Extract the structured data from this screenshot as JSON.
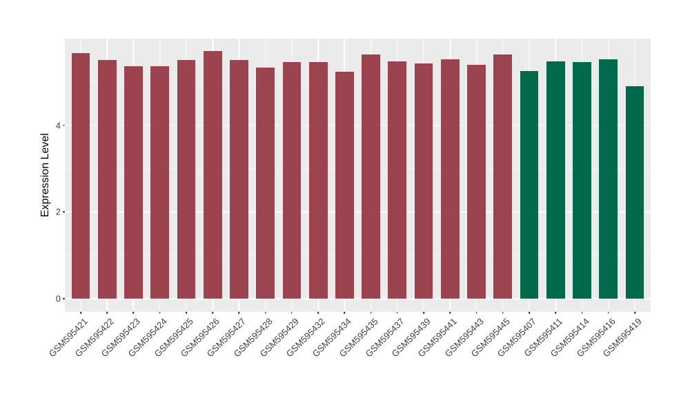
{
  "chart_data": {
    "type": "bar",
    "title": "",
    "xlabel": "",
    "ylabel": "Expression Level",
    "ylim": [
      -0.3,
      6.0
    ],
    "yticks": [
      0,
      2,
      4
    ],
    "y_minor_ticks": [
      1,
      3,
      5
    ],
    "grid": "white major and minor horizontal lines plus white vertical lines at category centers on grey panel",
    "legend_position": "none",
    "x_tick_angle": 45,
    "categories": [
      "GSM595421",
      "GSM595422",
      "GSM595423",
      "GSM595424",
      "GSM595425",
      "GSM595426",
      "GSM595427",
      "GSM595428",
      "GSM595429",
      "GSM595432",
      "GSM595434",
      "GSM595435",
      "GSM595437",
      "GSM595439",
      "GSM595441",
      "GSM595443",
      "GSM595445",
      "GSM595407",
      "GSM595411",
      "GSM595414",
      "GSM595416",
      "GSM595419"
    ],
    "values": [
      5.67,
      5.51,
      5.36,
      5.37,
      5.5,
      5.71,
      5.51,
      5.33,
      5.46,
      5.46,
      5.23,
      5.63,
      5.47,
      5.42,
      5.53,
      5.4,
      5.63,
      5.25,
      5.48,
      5.46,
      5.52,
      4.91
    ],
    "bar_colors": [
      "#9B4450",
      "#9B4450",
      "#9B4450",
      "#9B4450",
      "#9B4450",
      "#9B4450",
      "#9B4450",
      "#9B4450",
      "#9B4450",
      "#9B4450",
      "#9B4450",
      "#9B4450",
      "#9B4450",
      "#9B4450",
      "#9B4450",
      "#9B4450",
      "#9B4450",
      "#03694C",
      "#03694C",
      "#03694C",
      "#03694C",
      "#03694C"
    ],
    "styles": {
      "panel_bg": "#EBEBEB",
      "gridline_color": "#FFFFFF",
      "bar_red": "#9B4450",
      "bar_green": "#03694C",
      "axis_text_color": "#404040",
      "axis_title_color": "#000000",
      "tick_mark_color": "#333333",
      "figure_bg": "#FFFFFF"
    }
  }
}
